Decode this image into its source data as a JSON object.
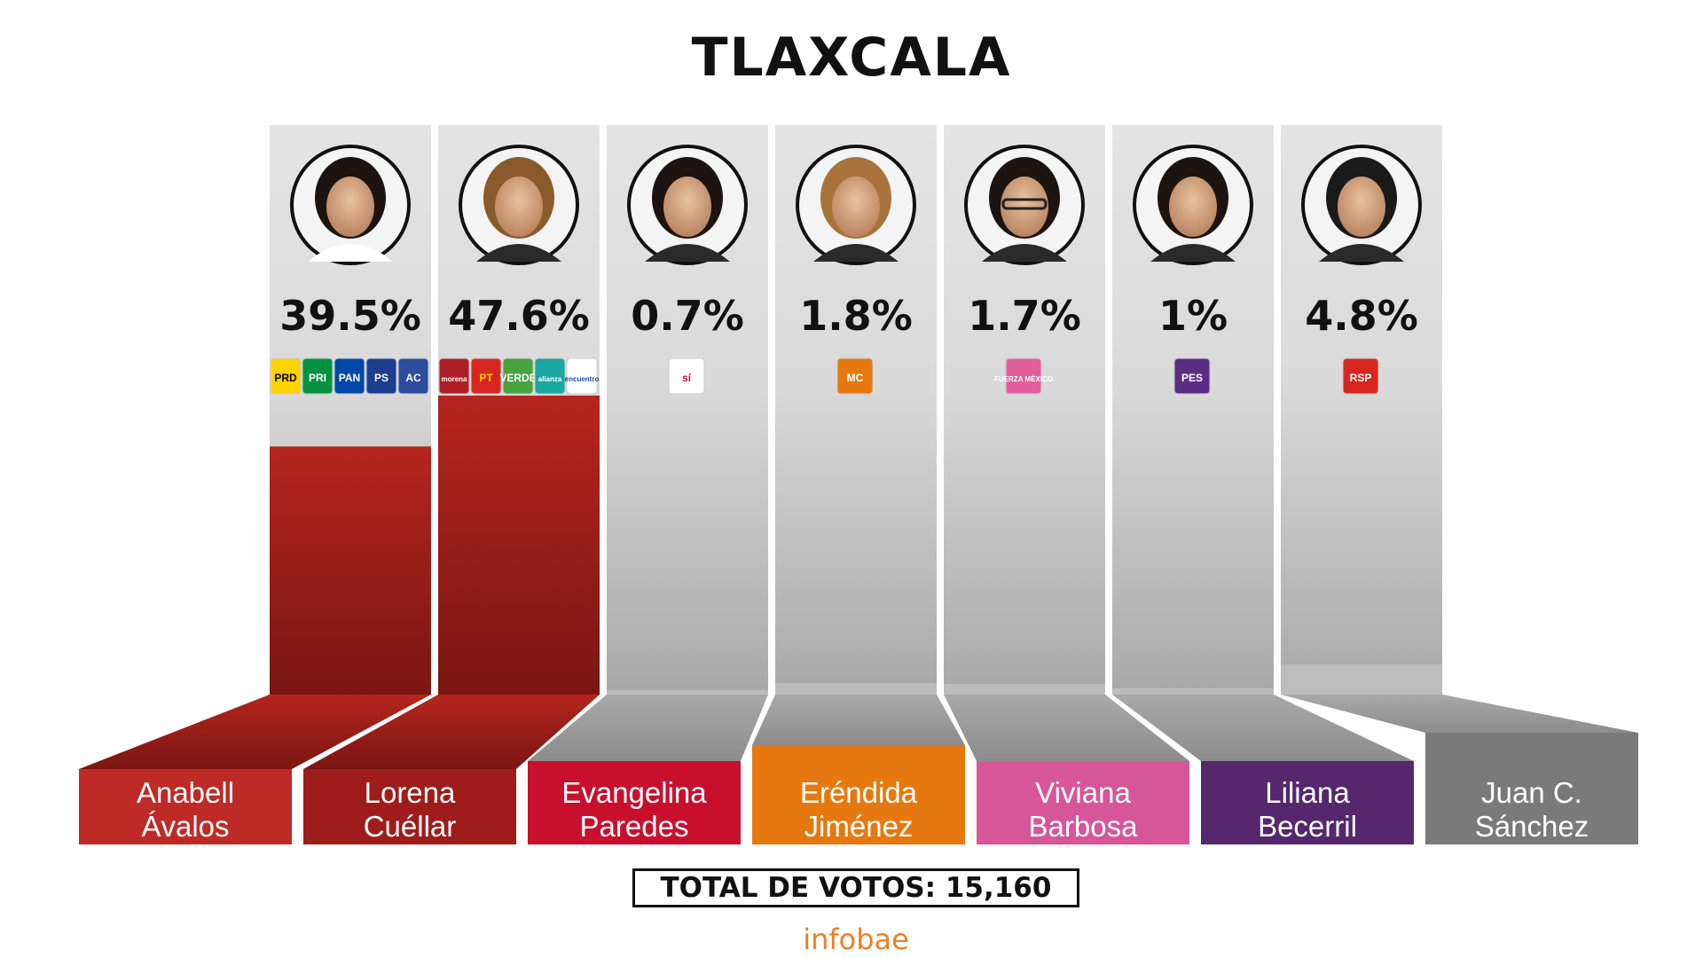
{
  "title": "TLAXCALA",
  "chart_data": {
    "type": "bar",
    "title": "TLAXCALA",
    "unit": "%",
    "categories": [
      "Anabell Ávalos",
      "Lorena Cuéllar",
      "Evangelina Paredes",
      "Eréndida Jiménez",
      "Viviana Barbosa",
      "Liliana Becerril",
      "Juan C. Sánchez"
    ],
    "values": [
      39.5,
      47.6,
      0.7,
      1.8,
      1.7,
      1,
      4.8
    ],
    "value_labels": [
      "39.5%",
      "47.6%",
      "0.7%",
      "1.8%",
      "1.7%",
      "1%",
      "4.8%"
    ],
    "ylim": [
      0,
      47.6
    ]
  },
  "candidates": [
    {
      "first": "Anabell",
      "last": "Ávalos",
      "percent": "39.5%",
      "color": "#be2a25",
      "logos": [
        "PRD",
        "PRI",
        "PAN",
        "PS",
        "AC"
      ]
    },
    {
      "first": "Lorena",
      "last": "Cuéllar",
      "percent": "47.6%",
      "color": "#9e1d1a",
      "logos": [
        "morena",
        "PT",
        "VERDE",
        "alianza",
        "encuentro"
      ]
    },
    {
      "first": "Evangelina",
      "last": "Paredes",
      "percent": "0.7%",
      "color": "#c8102e",
      "logos": [
        "sí"
      ]
    },
    {
      "first": "Eréndida",
      "last": "Jiménez",
      "percent": "1.8%",
      "color": "#e5790f",
      "logos": [
        "MC"
      ]
    },
    {
      "first": "Viviana",
      "last": "Barbosa",
      "percent": "1.7%",
      "color": "#d65699",
      "logos": [
        "FUERZA MÉXICO"
      ]
    },
    {
      "first": "Liliana",
      "last": "Becerril",
      "percent": "1%",
      "color": "#55276d",
      "logos": [
        "PES"
      ]
    },
    {
      "first": "Juan C.",
      "last": "Sánchez",
      "percent": "4.8%",
      "color": "#7a7a7a",
      "logos": [
        "RSP"
      ]
    }
  ],
  "total_votes": "TOTAL DE VOTOS: 15,160",
  "brand": "infobae"
}
